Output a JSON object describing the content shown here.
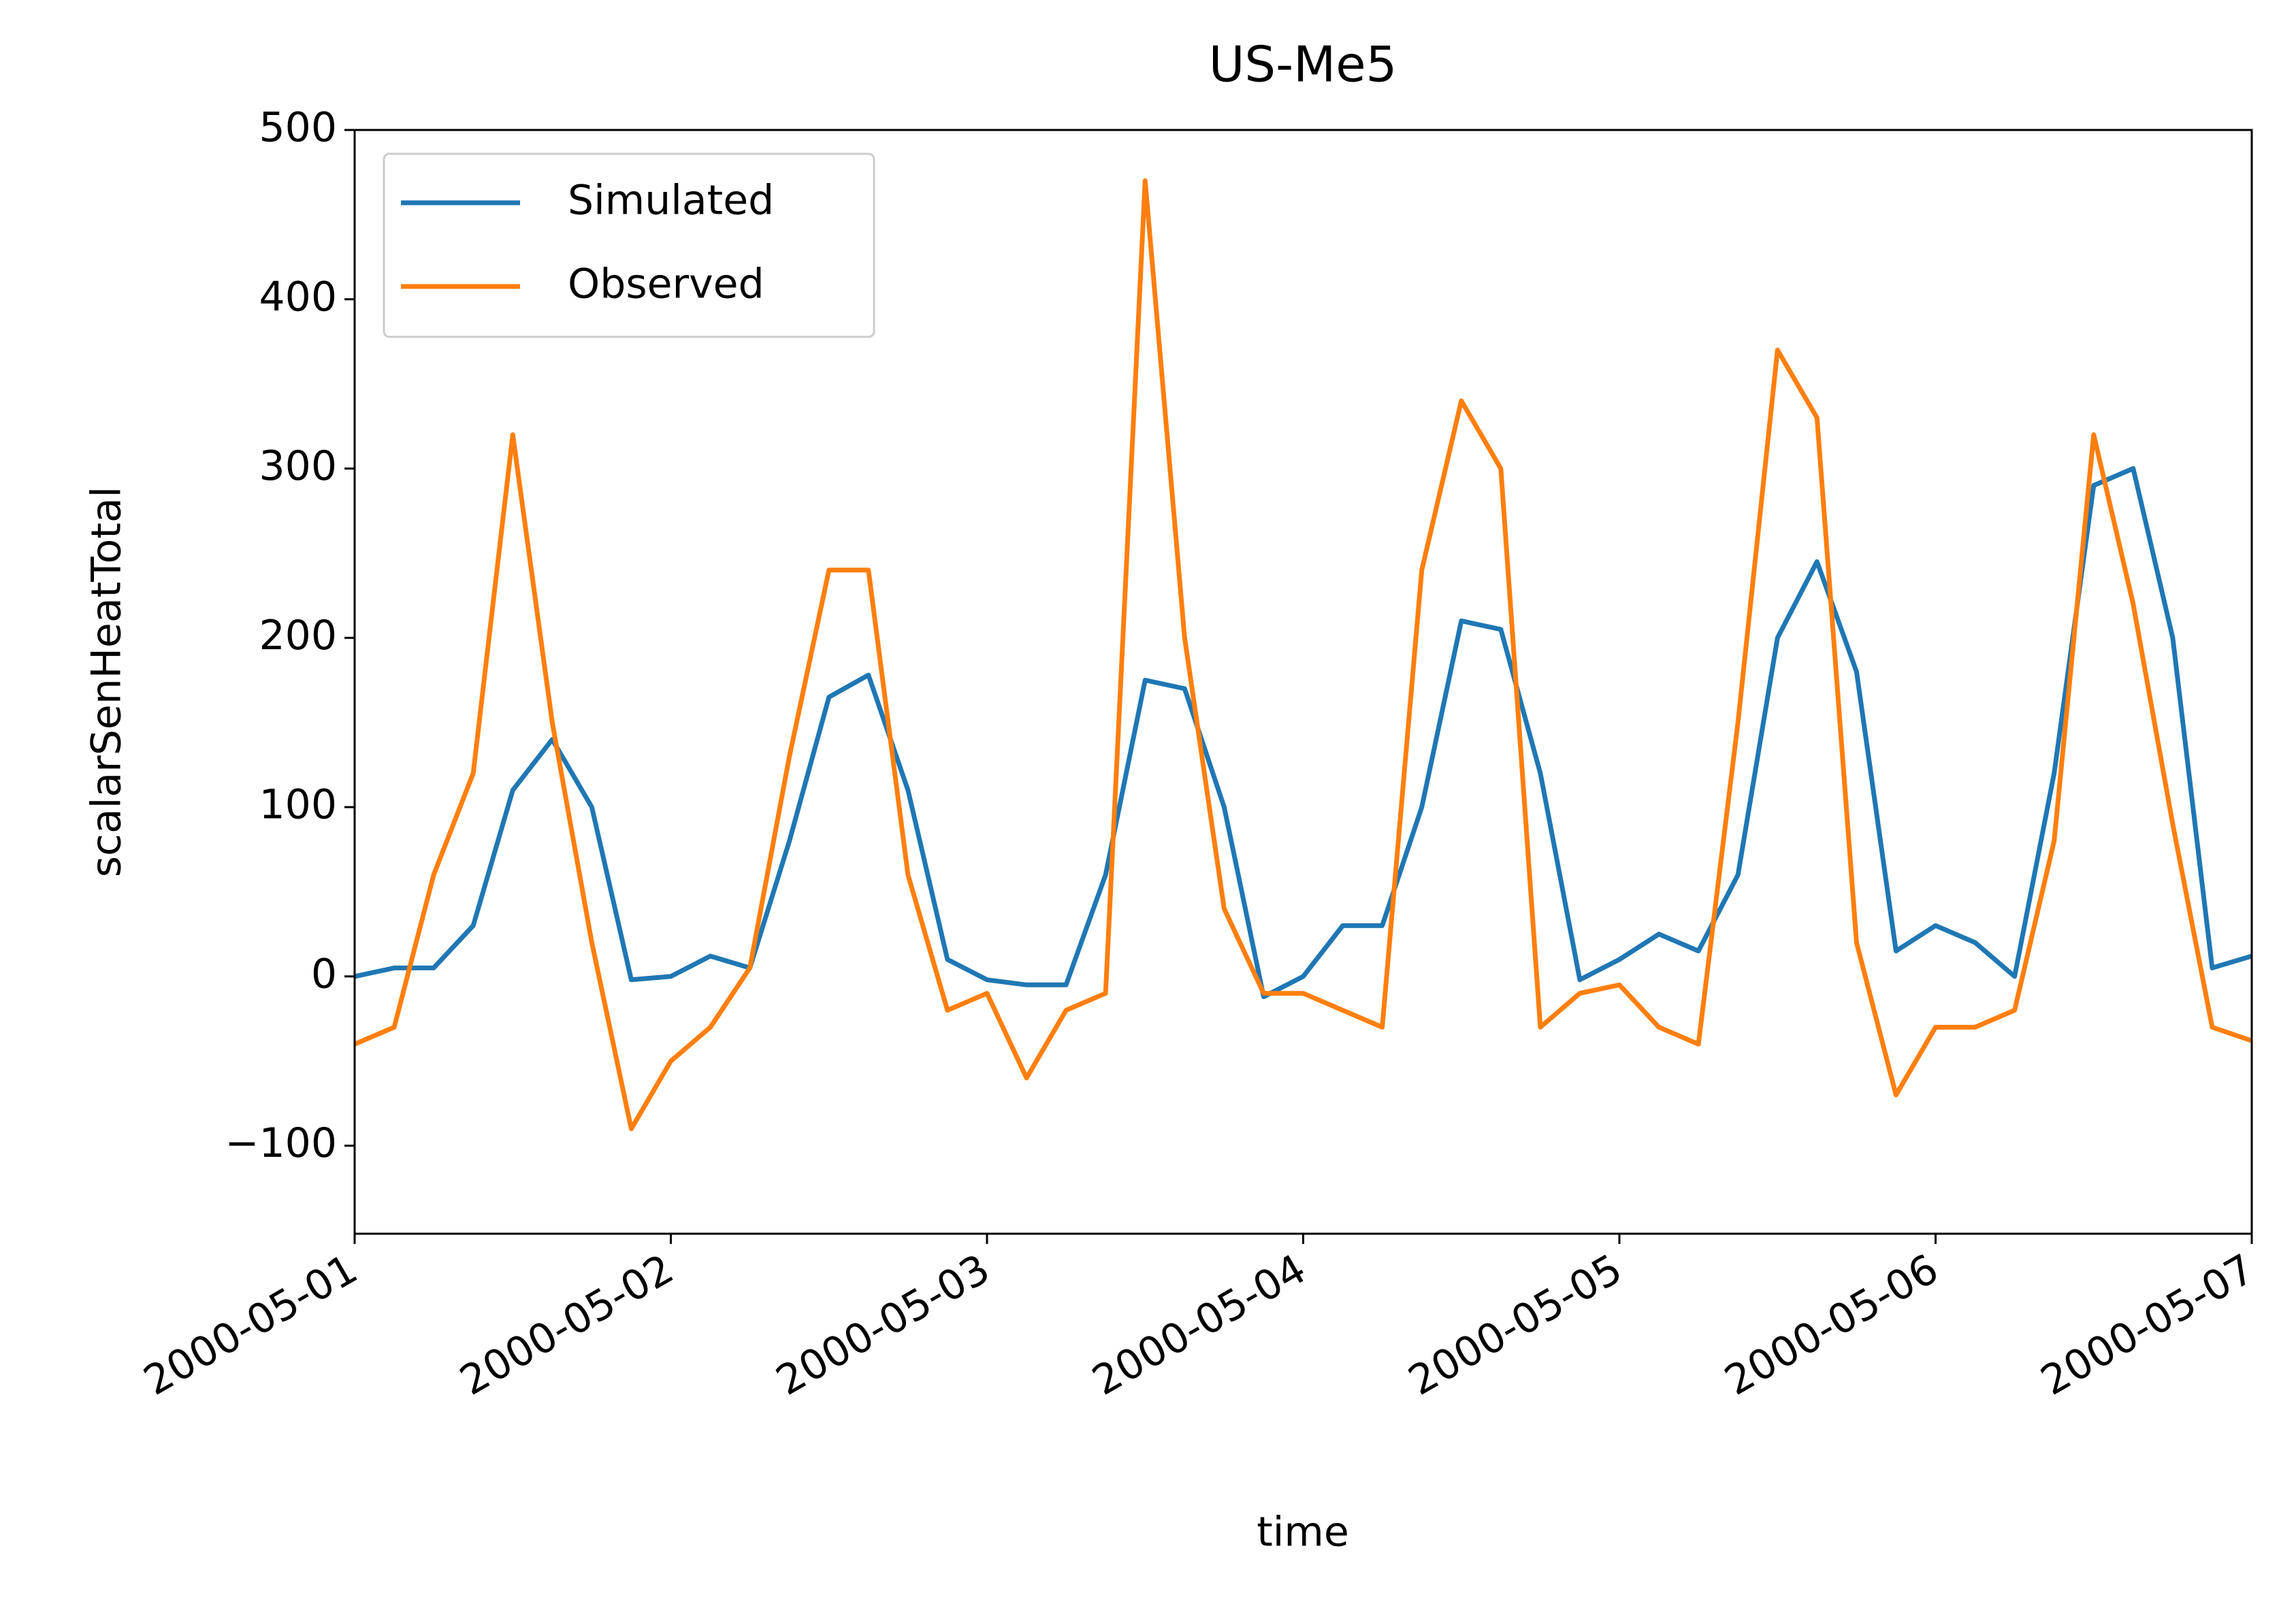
{
  "chart_data": {
    "type": "line",
    "title": "US-Me5",
    "x_label": "time",
    "y_label": "scalarSenHeatTotal",
    "x": [
      "2000-05-01 00:00",
      "2000-05-01 03:00",
      "2000-05-01 06:00",
      "2000-05-01 09:00",
      "2000-05-01 12:00",
      "2000-05-01 15:00",
      "2000-05-01 18:00",
      "2000-05-01 21:00",
      "2000-05-02 00:00",
      "2000-05-02 03:00",
      "2000-05-02 06:00",
      "2000-05-02 09:00",
      "2000-05-02 12:00",
      "2000-05-02 15:00",
      "2000-05-02 18:00",
      "2000-05-02 21:00",
      "2000-05-03 00:00",
      "2000-05-03 03:00",
      "2000-05-03 06:00",
      "2000-05-03 09:00",
      "2000-05-03 12:00",
      "2000-05-03 15:00",
      "2000-05-03 18:00",
      "2000-05-03 21:00",
      "2000-05-04 00:00",
      "2000-05-04 03:00",
      "2000-05-04 06:00",
      "2000-05-04 09:00",
      "2000-05-04 12:00",
      "2000-05-04 15:00",
      "2000-05-04 18:00",
      "2000-05-04 21:00",
      "2000-05-05 00:00",
      "2000-05-05 03:00",
      "2000-05-05 06:00",
      "2000-05-05 09:00",
      "2000-05-05 12:00",
      "2000-05-05 15:00",
      "2000-05-05 18:00",
      "2000-05-05 21:00",
      "2000-05-06 00:00",
      "2000-05-06 03:00",
      "2000-05-06 06:00",
      "2000-05-06 09:00",
      "2000-05-06 12:00",
      "2000-05-06 15:00",
      "2000-05-06 18:00",
      "2000-05-06 21:00",
      "2000-05-07 00:00"
    ],
    "series": [
      {
        "name": "Simulated",
        "color": "#1f77b4",
        "values": [
          0,
          5,
          5,
          30,
          110,
          140,
          100,
          -2,
          0,
          12,
          5,
          80,
          165,
          178,
          110,
          10,
          -2,
          -5,
          -5,
          60,
          175,
          170,
          100,
          -12,
          0,
          30,
          30,
          100,
          210,
          205,
          120,
          -2,
          10,
          25,
          15,
          60,
          200,
          245,
          180,
          15,
          30,
          20,
          0,
          120,
          290,
          300,
          200,
          5,
          12
        ]
      },
      {
        "name": "Observed",
        "color": "#ff7f0e",
        "values": [
          -40,
          -30,
          60,
          120,
          320,
          150,
          20,
          -90,
          -50,
          -30,
          5,
          130,
          240,
          240,
          60,
          -20,
          -10,
          -60,
          -20,
          -10,
          470,
          200,
          40,
          -10,
          -10,
          -20,
          -30,
          240,
          340,
          300,
          -30,
          -10,
          -5,
          -30,
          -40,
          150,
          370,
          330,
          20,
          -70,
          -30,
          -30,
          -20,
          80,
          320,
          220,
          90,
          -30,
          -38
        ]
      }
    ],
    "xlim": [
      "2000-05-01",
      "2000-05-07"
    ],
    "xticks": [
      "2000-05-01",
      "2000-05-02",
      "2000-05-03",
      "2000-05-04",
      "2000-05-05",
      "2000-05-06",
      "2000-05-07"
    ],
    "ylim": [
      -152,
      500
    ],
    "yticks": [
      {
        "value": -100,
        "label": "−100"
      },
      0,
      100,
      200,
      300,
      400,
      500
    ],
    "legend": "upper left",
    "grid": false
  }
}
